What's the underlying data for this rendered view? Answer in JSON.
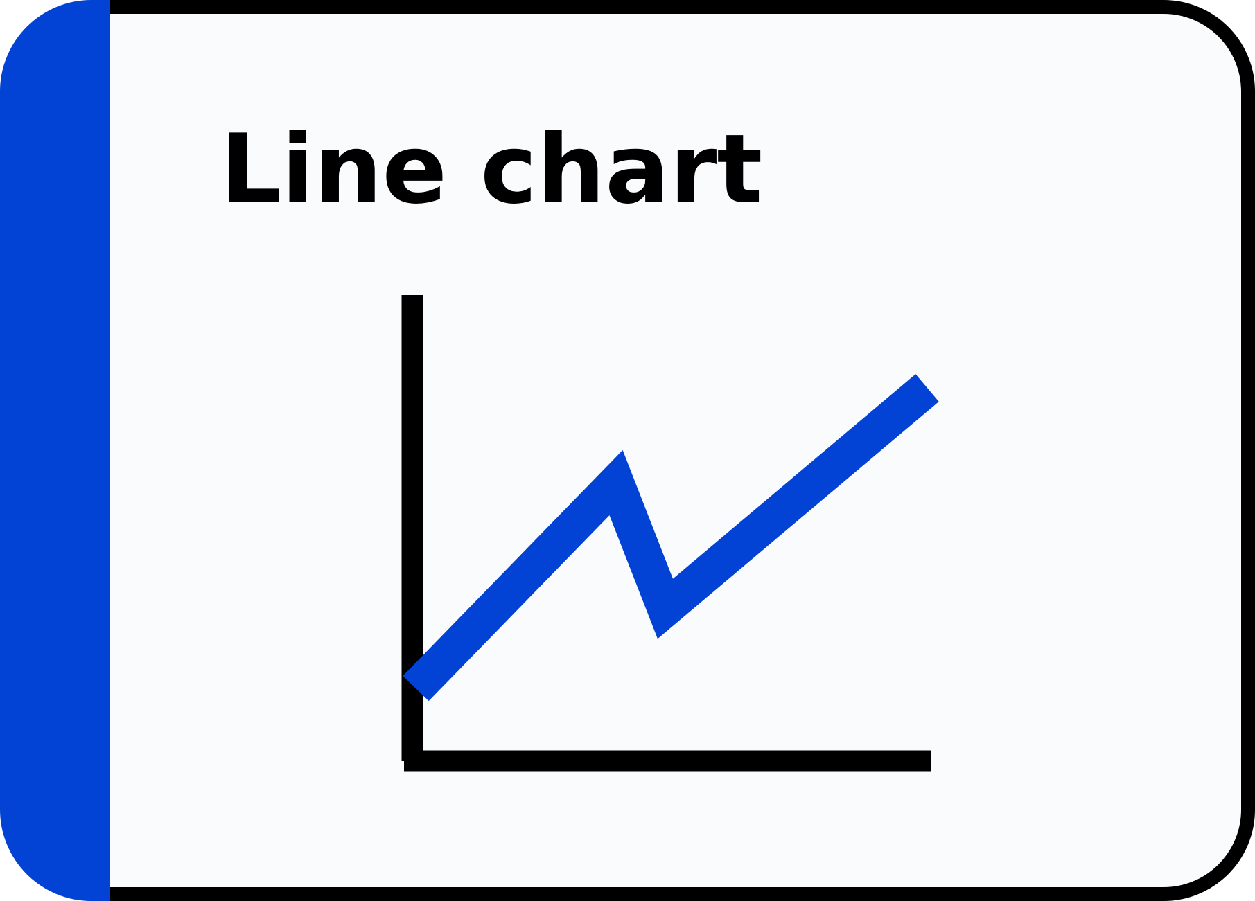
{
  "card": {
    "title": "Line chart"
  },
  "colors": {
    "accent": "#0242d4",
    "background": "#fafbfd",
    "outline": "#000000"
  },
  "icon": "line-chart-icon"
}
